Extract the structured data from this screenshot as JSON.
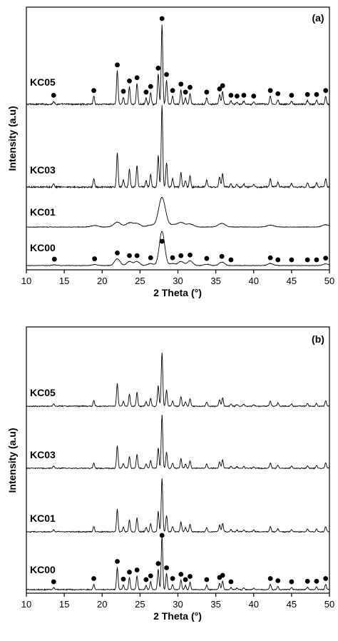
{
  "chart_data": [
    {
      "panel_label": "(a)",
      "type": "line",
      "xlabel": "2 Theta (°)",
      "ylabel": "Intensity (a.u)",
      "xlim": [
        10,
        50
      ],
      "x_ticks": [
        10,
        15,
        20,
        25,
        30,
        35,
        40,
        45,
        50
      ],
      "series": [
        {
          "name": "KC05",
          "peaks": [
            [
              13.6,
              0.04
            ],
            [
              18.9,
              0.1
            ],
            [
              22.0,
              0.42
            ],
            [
              22.8,
              0.09
            ],
            [
              23.6,
              0.22
            ],
            [
              24.6,
              0.26
            ],
            [
              25.8,
              0.08
            ],
            [
              26.4,
              0.15
            ],
            [
              27.4,
              0.38
            ],
            [
              27.9,
              1.0
            ],
            [
              28.5,
              0.3
            ],
            [
              29.3,
              0.1
            ],
            [
              30.4,
              0.18
            ],
            [
              31.0,
              0.08
            ],
            [
              31.6,
              0.14
            ],
            [
              33.8,
              0.08
            ],
            [
              35.5,
              0.12
            ],
            [
              35.9,
              0.16
            ],
            [
              37.0,
              0.04
            ],
            [
              37.8,
              0.03
            ],
            [
              38.7,
              0.04
            ],
            [
              40.0,
              0.03
            ],
            [
              42.2,
              0.1
            ],
            [
              43.2,
              0.06
            ],
            [
              45.0,
              0.04
            ],
            [
              47.1,
              0.05
            ],
            [
              48.3,
              0.05
            ],
            [
              49.5,
              0.1
            ]
          ],
          "peak_width": 0.1,
          "noise": 0.012
        },
        {
          "name": "KC03",
          "peaks": [
            [
              13.6,
              0.04
            ],
            [
              18.9,
              0.1
            ],
            [
              22.0,
              0.42
            ],
            [
              22.8,
              0.09
            ],
            [
              23.6,
              0.22
            ],
            [
              24.6,
              0.26
            ],
            [
              25.8,
              0.08
            ],
            [
              26.4,
              0.15
            ],
            [
              27.4,
              0.38
            ],
            [
              27.9,
              1.0
            ],
            [
              28.5,
              0.3
            ],
            [
              29.3,
              0.1
            ],
            [
              30.4,
              0.18
            ],
            [
              31.0,
              0.08
            ],
            [
              31.6,
              0.14
            ],
            [
              33.8,
              0.08
            ],
            [
              35.5,
              0.12
            ],
            [
              35.9,
              0.16
            ],
            [
              37.0,
              0.04
            ],
            [
              37.8,
              0.03
            ],
            [
              38.7,
              0.04
            ],
            [
              40.0,
              0.03
            ],
            [
              42.2,
              0.1
            ],
            [
              43.2,
              0.06
            ],
            [
              45.0,
              0.04
            ],
            [
              47.1,
              0.05
            ],
            [
              48.3,
              0.05
            ],
            [
              49.5,
              0.1
            ]
          ],
          "peak_width": 0.1,
          "noise": 0.012
        },
        {
          "name": "KC01",
          "peaks": [
            [
              19.0,
              0.04
            ],
            [
              22.0,
              0.13
            ],
            [
              23.6,
              0.11
            ],
            [
              24.6,
              0.09
            ],
            [
              26.4,
              0.05
            ],
            [
              27.9,
              0.8
            ],
            [
              29.3,
              0.06
            ],
            [
              30.4,
              0.12
            ],
            [
              31.6,
              0.08
            ],
            [
              35.8,
              0.1
            ],
            [
              42.2,
              0.05
            ],
            [
              49.5,
              0.06
            ]
          ],
          "peak_width": 0.45,
          "noise": 0.01
        },
        {
          "name": "KC00",
          "peaks": [
            [
              13.7,
              0.02
            ],
            [
              19.0,
              0.03
            ],
            [
              22.0,
              0.2
            ],
            [
              23.6,
              0.12
            ],
            [
              24.6,
              0.12
            ],
            [
              26.4,
              0.06
            ],
            [
              27.9,
              1.0
            ],
            [
              29.3,
              0.06
            ],
            [
              30.4,
              0.12
            ],
            [
              31.6,
              0.14
            ],
            [
              33.8,
              0.04
            ],
            [
              35.8,
              0.1
            ],
            [
              42.2,
              0.06
            ],
            [
              49.5,
              0.05
            ]
          ],
          "peak_width": 0.35,
          "noise": 0.01
        }
      ],
      "markers": [
        {
          "series": "KC05",
          "x": [
            13.6,
            18.9,
            22.0,
            22.8,
            23.6,
            24.6,
            25.8,
            26.4,
            27.4,
            27.9,
            28.5,
            29.3,
            30.4,
            31.0,
            31.6,
            33.8,
            35.5,
            35.9,
            37.0,
            37.8,
            38.7,
            40.0,
            42.2,
            43.2,
            45.0,
            47.1,
            48.3,
            49.5
          ]
        },
        {
          "series": "KC00",
          "x": [
            13.7,
            19.0,
            22.0,
            23.6,
            24.6,
            26.4,
            27.9,
            29.3,
            30.4,
            31.6,
            33.8,
            35.8,
            37.0,
            42.2,
            43.2,
            45.0,
            47.1,
            48.3,
            49.5
          ]
        }
      ]
    },
    {
      "panel_label": "(b)",
      "type": "line",
      "xlabel": "2 Theta (°)",
      "ylabel": "Intensity (a.u)",
      "xlim": [
        10,
        50
      ],
      "x_ticks": [
        10,
        15,
        20,
        25,
        30,
        35,
        40,
        45,
        50
      ],
      "series": [
        {
          "name": "KC05",
          "peaks": [
            [
              13.6,
              0.04
            ],
            [
              18.9,
              0.1
            ],
            [
              22.0,
              0.42
            ],
            [
              22.8,
              0.09
            ],
            [
              23.6,
              0.22
            ],
            [
              24.6,
              0.26
            ],
            [
              25.8,
              0.08
            ],
            [
              26.4,
              0.15
            ],
            [
              27.4,
              0.38
            ],
            [
              27.9,
              1.0
            ],
            [
              28.5,
              0.3
            ],
            [
              29.3,
              0.1
            ],
            [
              30.4,
              0.18
            ],
            [
              31.0,
              0.08
            ],
            [
              31.6,
              0.14
            ],
            [
              33.8,
              0.08
            ],
            [
              35.5,
              0.12
            ],
            [
              35.9,
              0.16
            ],
            [
              37.0,
              0.04
            ],
            [
              37.8,
              0.03
            ],
            [
              38.7,
              0.04
            ],
            [
              40.0,
              0.03
            ],
            [
              42.2,
              0.1
            ],
            [
              43.2,
              0.06
            ],
            [
              45.0,
              0.04
            ],
            [
              47.1,
              0.05
            ],
            [
              48.3,
              0.05
            ],
            [
              49.5,
              0.1
            ]
          ],
          "peak_width": 0.1,
          "noise": 0.012
        },
        {
          "name": "KC03",
          "peaks": [
            [
              13.6,
              0.04
            ],
            [
              18.9,
              0.1
            ],
            [
              22.0,
              0.42
            ],
            [
              22.8,
              0.09
            ],
            [
              23.6,
              0.22
            ],
            [
              24.6,
              0.26
            ],
            [
              25.8,
              0.08
            ],
            [
              26.4,
              0.15
            ],
            [
              27.4,
              0.38
            ],
            [
              27.9,
              1.0
            ],
            [
              28.5,
              0.3
            ],
            [
              29.3,
              0.1
            ],
            [
              30.4,
              0.18
            ],
            [
              31.0,
              0.08
            ],
            [
              31.6,
              0.14
            ],
            [
              33.8,
              0.08
            ],
            [
              35.5,
              0.12
            ],
            [
              35.9,
              0.16
            ],
            [
              37.0,
              0.04
            ],
            [
              37.8,
              0.03
            ],
            [
              38.7,
              0.04
            ],
            [
              40.0,
              0.03
            ],
            [
              42.2,
              0.1
            ],
            [
              43.2,
              0.06
            ],
            [
              45.0,
              0.04
            ],
            [
              47.1,
              0.05
            ],
            [
              48.3,
              0.05
            ],
            [
              49.5,
              0.1
            ]
          ],
          "peak_width": 0.1,
          "noise": 0.012
        },
        {
          "name": "KC01",
          "peaks": [
            [
              13.6,
              0.04
            ],
            [
              18.9,
              0.1
            ],
            [
              22.0,
              0.42
            ],
            [
              22.8,
              0.09
            ],
            [
              23.6,
              0.22
            ],
            [
              24.6,
              0.26
            ],
            [
              25.8,
              0.08
            ],
            [
              26.4,
              0.15
            ],
            [
              27.4,
              0.38
            ],
            [
              27.9,
              1.0
            ],
            [
              28.5,
              0.3
            ],
            [
              29.3,
              0.1
            ],
            [
              30.4,
              0.18
            ],
            [
              31.0,
              0.08
            ],
            [
              31.6,
              0.14
            ],
            [
              33.8,
              0.08
            ],
            [
              35.5,
              0.12
            ],
            [
              35.9,
              0.16
            ],
            [
              37.0,
              0.04
            ],
            [
              37.8,
              0.03
            ],
            [
              38.7,
              0.04
            ],
            [
              40.0,
              0.03
            ],
            [
              42.2,
              0.1
            ],
            [
              43.2,
              0.06
            ],
            [
              45.0,
              0.04
            ],
            [
              47.1,
              0.05
            ],
            [
              48.3,
              0.05
            ],
            [
              49.5,
              0.1
            ]
          ],
          "peak_width": 0.1,
          "noise": 0.012
        },
        {
          "name": "KC00",
          "peaks": [
            [
              13.6,
              0.04
            ],
            [
              18.9,
              0.1
            ],
            [
              22.0,
              0.42
            ],
            [
              22.8,
              0.09
            ],
            [
              23.6,
              0.22
            ],
            [
              24.6,
              0.26
            ],
            [
              25.8,
              0.08
            ],
            [
              26.4,
              0.15
            ],
            [
              27.4,
              0.38
            ],
            [
              27.9,
              1.0
            ],
            [
              28.5,
              0.3
            ],
            [
              29.3,
              0.1
            ],
            [
              30.4,
              0.18
            ],
            [
              31.0,
              0.08
            ],
            [
              31.6,
              0.14
            ],
            [
              33.8,
              0.08
            ],
            [
              35.5,
              0.12
            ],
            [
              35.9,
              0.16
            ],
            [
              37.0,
              0.04
            ],
            [
              37.8,
              0.03
            ],
            [
              38.7,
              0.04
            ],
            [
              40.0,
              0.03
            ],
            [
              42.2,
              0.1
            ],
            [
              43.2,
              0.06
            ],
            [
              45.0,
              0.04
            ],
            [
              47.1,
              0.05
            ],
            [
              48.3,
              0.05
            ],
            [
              49.5,
              0.1
            ]
          ],
          "peak_width": 0.1,
          "noise": 0.012
        }
      ],
      "markers": [
        {
          "series": "KC00",
          "x": [
            13.6,
            18.9,
            22.0,
            22.8,
            23.6,
            24.6,
            25.8,
            26.4,
            27.4,
            27.9,
            28.5,
            29.3,
            30.4,
            31.0,
            31.6,
            33.8,
            35.5,
            35.9,
            37.0,
            42.2,
            43.2,
            45.0,
            47.1,
            48.3,
            49.5
          ]
        }
      ]
    }
  ]
}
